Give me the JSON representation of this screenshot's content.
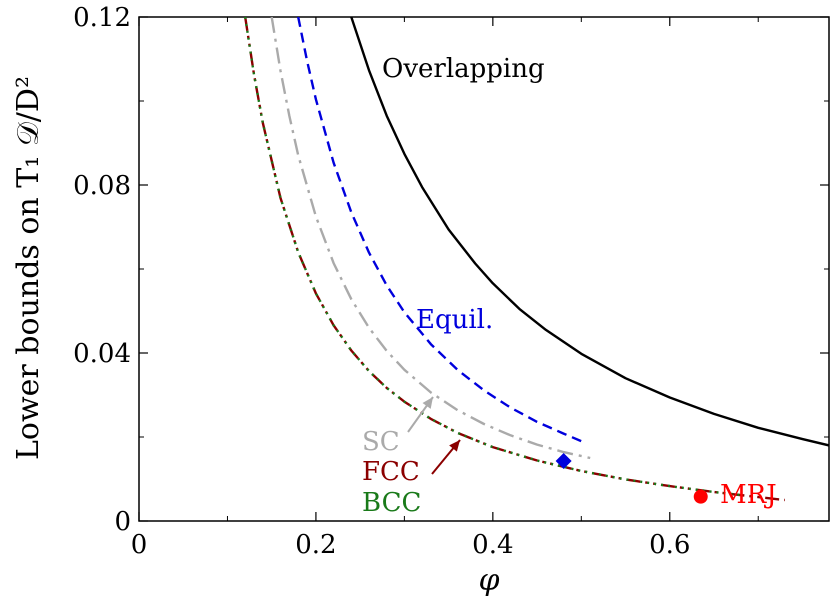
{
  "chart_data": {
    "type": "line",
    "xlabel": "φ",
    "ylabel": "Lower bounds on T₁ 𝒟/D²",
    "xlim": [
      0,
      0.78
    ],
    "ylim": [
      0,
      0.12
    ],
    "x_ticks": [
      {
        "value": 0,
        "label": "0"
      },
      {
        "value": 0.2,
        "label": "0.2"
      },
      {
        "value": 0.4,
        "label": "0.4"
      },
      {
        "value": 0.6,
        "label": "0.6"
      }
    ],
    "y_ticks": [
      {
        "value": 0,
        "label": "0"
      },
      {
        "value": 0.04,
        "label": "0.04"
      },
      {
        "value": 0.08,
        "label": "0.08"
      },
      {
        "value": 0.12,
        "label": "0.12"
      }
    ],
    "grid": false,
    "legend": "none",
    "series": [
      {
        "name": "Overlapping",
        "color": "#000000",
        "dash": "solid",
        "x": [
          0.24,
          0.26,
          0.28,
          0.3,
          0.32,
          0.35,
          0.38,
          0.4,
          0.43,
          0.46,
          0.5,
          0.55,
          0.6,
          0.65,
          0.7,
          0.75,
          0.78
        ],
        "y": [
          0.12,
          0.1073,
          0.0965,
          0.0874,
          0.0795,
          0.0694,
          0.0613,
          0.0566,
          0.0505,
          0.0455,
          0.0398,
          0.034,
          0.0294,
          0.0255,
          0.0222,
          0.0195,
          0.018
        ]
      },
      {
        "name": "Equil.",
        "color": "#0000dd",
        "dash": "dashed",
        "x": [
          0.18,
          0.19,
          0.2,
          0.22,
          0.24,
          0.26,
          0.28,
          0.3,
          0.33,
          0.36,
          0.39,
          0.42,
          0.45,
          0.48,
          0.5
        ],
        "y": [
          0.12,
          0.1095,
          0.1004,
          0.0853,
          0.0735,
          0.0639,
          0.0561,
          0.0497,
          0.0421,
          0.036,
          0.0311,
          0.027,
          0.0236,
          0.0208,
          0.019
        ]
      },
      {
        "name": "SC",
        "color": "#aaaaaa",
        "dash": "dashdot",
        "x": [
          0.15,
          0.16,
          0.17,
          0.18,
          0.2,
          0.22,
          0.24,
          0.26,
          0.28,
          0.3,
          0.33,
          0.36,
          0.39,
          0.42,
          0.45,
          0.48,
          0.51
        ],
        "y": [
          0.12,
          0.1072,
          0.0964,
          0.0871,
          0.0725,
          0.0614,
          0.0528,
          0.046,
          0.0405,
          0.036,
          0.0306,
          0.0264,
          0.0231,
          0.0204,
          0.0182,
          0.0164,
          0.015
        ]
      },
      {
        "name": "FCC",
        "color": "#8b0000",
        "dash": "dashdotdot",
        "x": [
          0.12,
          0.13,
          0.14,
          0.16,
          0.18,
          0.2,
          0.22,
          0.24,
          0.26,
          0.28,
          0.3,
          0.33,
          0.36,
          0.4,
          0.45,
          0.5,
          0.55,
          0.6,
          0.65,
          0.7,
          0.73
        ],
        "y": [
          0.12,
          0.1063,
          0.0948,
          0.0769,
          0.064,
          0.0542,
          0.0466,
          0.0406,
          0.0357,
          0.0317,
          0.0284,
          0.0243,
          0.021,
          0.0176,
          0.0144,
          0.0119,
          0.0099,
          0.0083,
          0.0069,
          0.0057,
          0.005
        ]
      },
      {
        "name": "BCC",
        "color": "#1a7a1a",
        "dash": "dotted",
        "x": [
          0.12,
          0.13,
          0.14,
          0.16,
          0.18,
          0.2,
          0.22,
          0.24,
          0.26,
          0.28,
          0.3,
          0.33,
          0.36,
          0.4,
          0.45,
          0.5,
          0.55,
          0.6,
          0.65,
          0.68
        ],
        "y": [
          0.12,
          0.1063,
          0.0948,
          0.0769,
          0.064,
          0.0542,
          0.0466,
          0.0406,
          0.0357,
          0.0317,
          0.0284,
          0.0243,
          0.021,
          0.0176,
          0.0144,
          0.0119,
          0.0099,
          0.0083,
          0.0069,
          0.0062
        ]
      }
    ],
    "markers": [
      {
        "name": "Equil. endpoint",
        "shape": "diamond",
        "color": "#0000dd",
        "x": 0.48,
        "y": 0.0143
      },
      {
        "name": "MRJ",
        "shape": "circle",
        "color": "#ff0000",
        "x": 0.635,
        "y": 0.0058
      }
    ],
    "annotations": [
      {
        "text": "Overlapping",
        "color": "#000000"
      },
      {
        "text": "Equil.",
        "color": "#0000dd"
      },
      {
        "text": "SC",
        "color": "#aaaaaa"
      },
      {
        "text": "FCC",
        "color": "#8b0000"
      },
      {
        "text": "BCC",
        "color": "#1a7a1a"
      },
      {
        "text": "MRJ",
        "color": "#ff0000"
      }
    ]
  }
}
